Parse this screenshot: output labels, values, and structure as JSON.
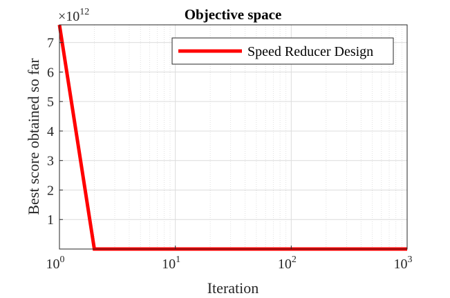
{
  "chart_data": {
    "type": "line",
    "title": "Objective space",
    "xlabel": "Iteration",
    "ylabel": "Best score obtained so far",
    "x_scale": "log",
    "xlim": [
      1,
      1000
    ],
    "ylim": [
      0,
      7.6
    ],
    "y_multiplier_label": "×10",
    "y_multiplier_exponent": "12",
    "grid": true,
    "minor_grid": true,
    "legend_position": "top-right",
    "x_ticks": [
      {
        "value": 1,
        "base": "10",
        "exp": "0"
      },
      {
        "value": 10,
        "base": "10",
        "exp": "1"
      },
      {
        "value": 100,
        "base": "10",
        "exp": "2"
      },
      {
        "value": 1000,
        "base": "10",
        "exp": "3"
      }
    ],
    "y_ticks": [
      {
        "value": 1,
        "label": "1"
      },
      {
        "value": 2,
        "label": "2"
      },
      {
        "value": 3,
        "label": "3"
      },
      {
        "value": 4,
        "label": "4"
      },
      {
        "value": 5,
        "label": "5"
      },
      {
        "value": 6,
        "label": "6"
      },
      {
        "value": 7,
        "label": "7"
      }
    ],
    "series": [
      {
        "name": "Speed Reducer Design",
        "color": "#ff0000",
        "x": [
          1,
          2,
          1000
        ],
        "y": [
          7.6,
          0.0,
          0.0
        ]
      }
    ]
  }
}
